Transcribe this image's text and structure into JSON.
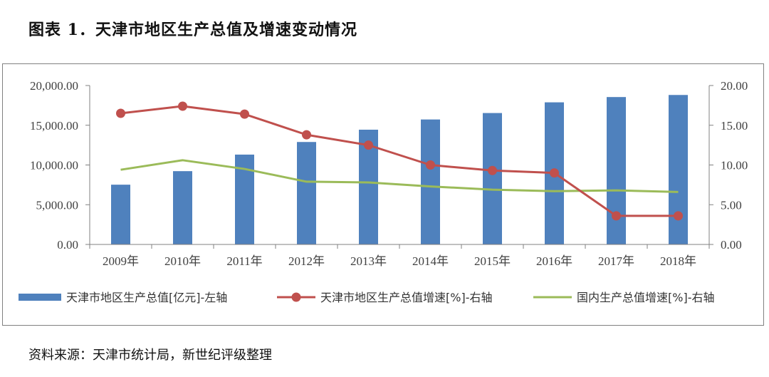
{
  "figure_title": "图表 1．天津市地区生产总值及增速变动情况",
  "source": "资料来源：天津市统计局，新世纪评级整理",
  "colors": {
    "bar": "#4f81bd",
    "line_tianjin": "#c0504d",
    "line_national": "#9bbb59",
    "axis": "#808080"
  },
  "chart_data": {
    "type": "bar",
    "title": "",
    "categories": [
      "2009年",
      "2010年",
      "2011年",
      "2012年",
      "2013年",
      "2014年",
      "2015年",
      "2016年",
      "2017年",
      "2018年"
    ],
    "ylim_left": [
      0,
      20000
    ],
    "ylim_right": [
      0,
      20
    ],
    "left_ticks": [
      "0.00",
      "5,000.00",
      "10,000.00",
      "15,000.00",
      "20,000.00"
    ],
    "right_ticks": [
      "0.00",
      "5.00",
      "10.00",
      "15.00",
      "20.00"
    ],
    "series": [
      {
        "name": "天津市地区生产总值[亿元]-左轴",
        "type": "bar",
        "axis": "left",
        "values": [
          7521,
          9224,
          11307,
          12894,
          14442,
          15727,
          16538,
          17885,
          18549,
          18810
        ]
      },
      {
        "name": "天津市地区生产总值增速[%]-右轴",
        "type": "line",
        "axis": "right",
        "markers": true,
        "values": [
          16.5,
          17.4,
          16.4,
          13.8,
          12.5,
          10.0,
          9.3,
          9.0,
          3.6,
          3.6
        ]
      },
      {
        "name": "国内生产总值增速[%]-右轴",
        "type": "line",
        "axis": "right",
        "markers": false,
        "values": [
          9.4,
          10.6,
          9.5,
          7.9,
          7.8,
          7.3,
          6.9,
          6.7,
          6.8,
          6.6
        ]
      }
    ],
    "legend_position": "bottom"
  }
}
